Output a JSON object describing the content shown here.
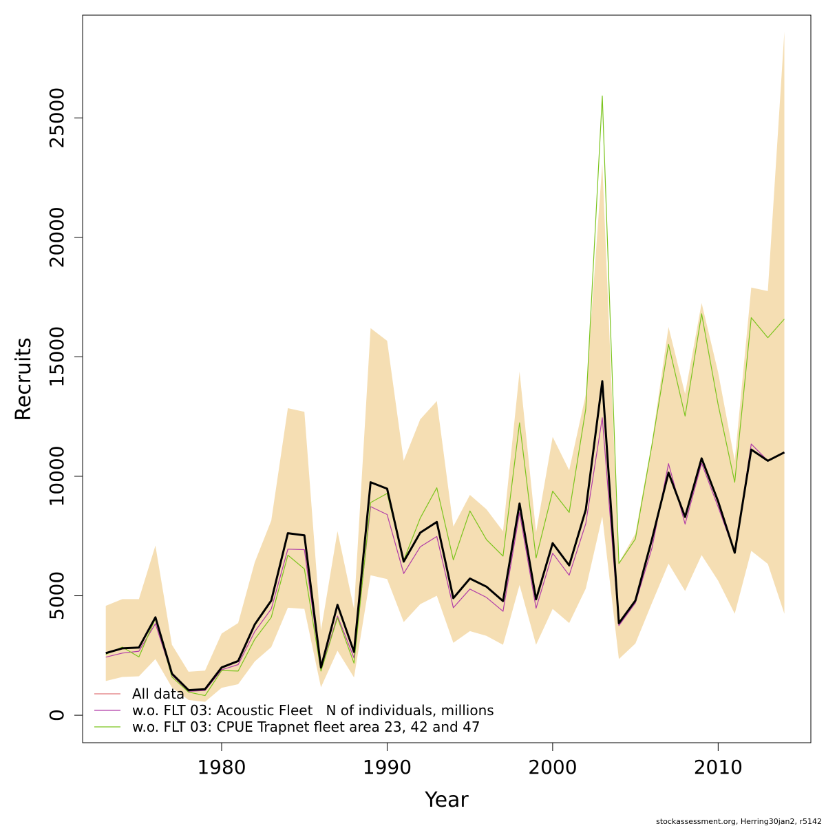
{
  "footer": "stockassessment.org, Herring30jan2, r5142",
  "chart_data": {
    "type": "line",
    "xlabel": "Year",
    "ylabel": "Recruits",
    "xlim": [
      1971.6,
      2015.6
    ],
    "ylim": [
      -1150,
      29300
    ],
    "xticks": [
      1980,
      1990,
      2000,
      2010
    ],
    "yticks": [
      0,
      5000,
      10000,
      15000,
      20000,
      25000
    ],
    "grid": false,
    "legend_position": "bottom-left",
    "band_color": "#f5deb3",
    "x": [
      1973,
      1974,
      1975,
      1976,
      1977,
      1978,
      1979,
      1980,
      1981,
      1982,
      1983,
      1984,
      1985,
      1986,
      1987,
      1988,
      1989,
      1990,
      1991,
      1992,
      1993,
      1994,
      1995,
      1996,
      1997,
      1998,
      1999,
      2000,
      2001,
      2002,
      2003,
      2004,
      2005,
      2006,
      2007,
      2008,
      2009,
      2010,
      2011,
      2012,
      2013,
      2014
    ],
    "band_upper": [
      4580,
      4860,
      4860,
      7100,
      2950,
      1820,
      1870,
      3420,
      3860,
      6400,
      8150,
      12850,
      12700,
      3550,
      7700,
      4450,
      16200,
      15670,
      10650,
      12380,
      13150,
      7900,
      9220,
      8620,
      7700,
      14380,
      7650,
      11650,
      10250,
      13420,
      23100,
      6380,
      7600,
      11450,
      16250,
      13450,
      17250,
      14350,
      10650,
      17900,
      17750,
      28600
    ],
    "band_lower": [
      1430,
      1600,
      1630,
      2350,
      1160,
      640,
      560,
      1150,
      1300,
      2250,
      2850,
      4500,
      4450,
      1170,
      2700,
      1580,
      5860,
      5700,
      3900,
      4650,
      5000,
      3030,
      3520,
      3320,
      2950,
      5450,
      2950,
      4450,
      3860,
      5300,
      8320,
      2350,
      3000,
      4700,
      6350,
      5200,
      6700,
      5630,
      4250,
      6880,
      6330,
      4250
    ],
    "series": [
      {
        "name": "All data",
        "color": "#e0787a",
        "values": [
          2600,
          2800,
          2830,
          4100,
          1740,
          1050,
          1090,
          2000,
          2270,
          3800,
          4800,
          7620,
          7530,
          2000,
          4620,
          2650,
          9750,
          9480,
          6430,
          7640,
          8090,
          4900,
          5720,
          5380,
          4780,
          8860,
          4850,
          7200,
          6270,
          8600,
          13980,
          3850,
          4800,
          7370,
          10150,
          8300,
          10750,
          8950,
          6800,
          11120,
          10650,
          11000
        ]
      },
      {
        "name": "w.o. FLT 03: Acoustic Fleet   N of individuals, millions",
        "color": "#b03aa8",
        "values": [
          2430,
          2600,
          2680,
          3830,
          1680,
          1000,
          1040,
          1900,
          2120,
          3500,
          4450,
          6950,
          6930,
          1880,
          4150,
          2400,
          8730,
          8400,
          5930,
          7050,
          7480,
          4500,
          5280,
          4930,
          4350,
          8480,
          4480,
          6780,
          5860,
          8020,
          12450,
          3750,
          4700,
          7000,
          10530,
          8000,
          10550,
          8720,
          6800,
          11350,
          10650,
          11000
        ]
      },
      {
        "name": "w.o. FLT 03: CPUE Trapnet fleet area 23, 42 and 47",
        "color": "#7ac41c",
        "values": [
          2550,
          2850,
          2440,
          4050,
          1600,
          970,
          820,
          1870,
          1850,
          3180,
          4100,
          6700,
          6120,
          1850,
          4080,
          2180,
          8900,
          9280,
          6480,
          8250,
          9520,
          6500,
          8550,
          7350,
          6660,
          12240,
          6580,
          9380,
          8490,
          12820,
          25920,
          6350,
          7380,
          11320,
          15520,
          12520,
          16800,
          13000,
          9750,
          16640,
          15800,
          16580
        ]
      }
    ],
    "main_line": {
      "name": "",
      "color": "#000000",
      "values": [
        2600,
        2800,
        2830,
        4100,
        1740,
        1050,
        1090,
        2000,
        2270,
        3800,
        4800,
        7620,
        7530,
        2000,
        4620,
        2650,
        9750,
        9480,
        6430,
        7640,
        8090,
        4900,
        5720,
        5380,
        4780,
        8860,
        4850,
        7200,
        6270,
        8600,
        13980,
        3850,
        4800,
        7370,
        10150,
        8300,
        10750,
        8950,
        6800,
        11120,
        10650,
        11000
      ]
    }
  }
}
